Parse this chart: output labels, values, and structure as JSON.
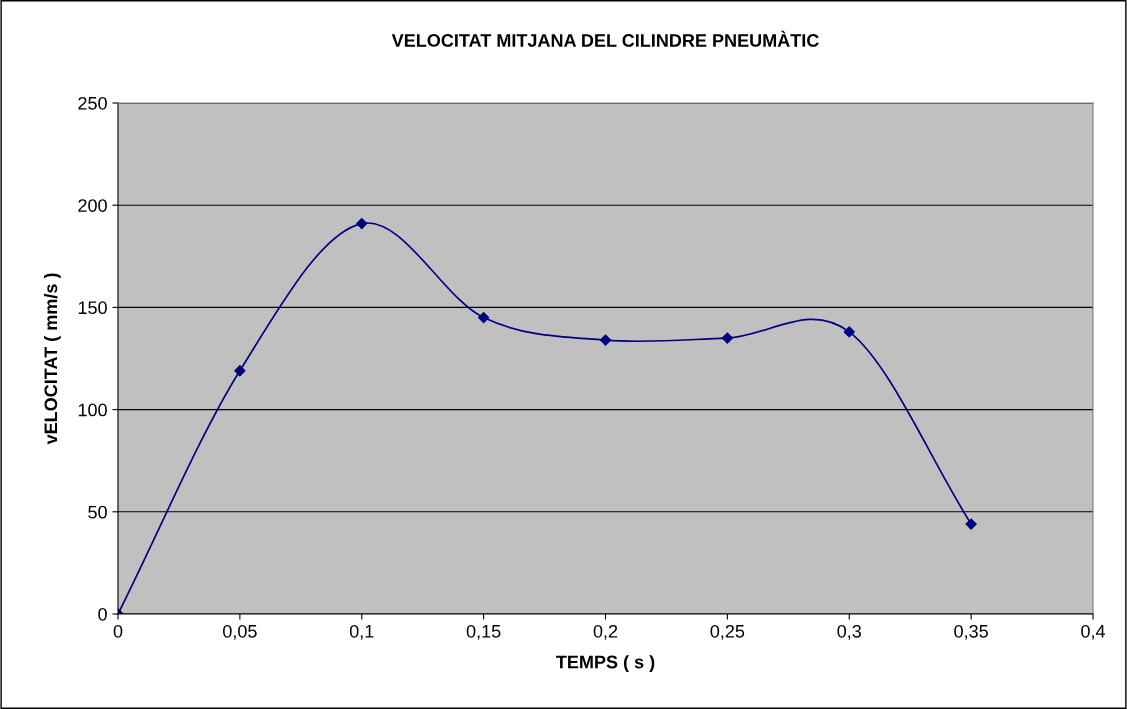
{
  "chart_data": {
    "type": "line",
    "title": "VELOCITAT MITJANA DEL CILINDRE PNEUMÀTIC",
    "xlabel": "TEMPS ( s )",
    "ylabel": "vELOCITAT ( mm/s )",
    "x": [
      0,
      0.05,
      0.1,
      0.15,
      0.2,
      0.25,
      0.3,
      0.35
    ],
    "series": [
      {
        "color": "#000080",
        "values": [
          0,
          119,
          191,
          145,
          134,
          135,
          138,
          44
        ]
      }
    ],
    "xlim": [
      0,
      0.4
    ],
    "ylim": [
      0,
      250
    ],
    "xticks": [
      0,
      {
        "value": 0.05,
        "label": "0,05"
      },
      {
        "value": 0.1,
        "label": "0,1"
      },
      {
        "value": 0.15,
        "label": "0,15"
      },
      {
        "value": 0.2,
        "label": "0,2"
      },
      {
        "value": 0.25,
        "label": "0,25"
      },
      {
        "value": 0.3,
        "label": "0,3"
      },
      {
        "value": 0.35,
        "label": "0,35"
      },
      {
        "value": 0.4,
        "label": "0,4"
      }
    ],
    "yticks": [
      0,
      50,
      100,
      150,
      200,
      250
    ],
    "grid": "y",
    "marker": "diamond",
    "line_style": "solid"
  }
}
